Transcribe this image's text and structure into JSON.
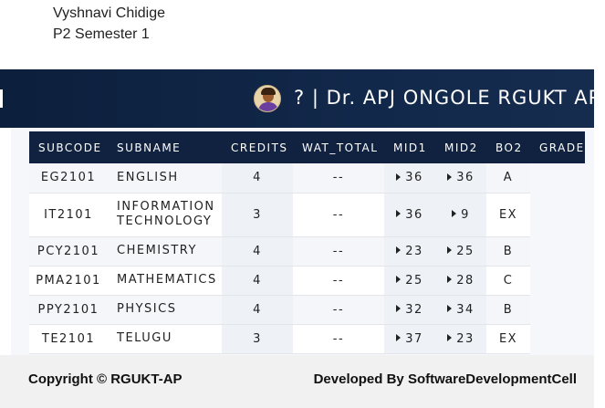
{
  "student": {
    "name": "Vyshnavi Chidige",
    "semester": "P2 Semester 1"
  },
  "header": {
    "title": "? | Dr. APJ ONGOLE RGUKT AP"
  },
  "table": {
    "columns": [
      "SUBCODE",
      "SUBNAME",
      "CREDITS",
      "WAT_TOTAL",
      "MID1",
      "MID2",
      "BO2",
      "GRADE"
    ],
    "rows": [
      {
        "subcode": "EG2101",
        "subname": [
          "ENGLISH"
        ],
        "credits": "4",
        "wat_total": "--",
        "mid1": "36",
        "mid2": "36",
        "bo2": "A"
      },
      {
        "subcode": "IT2101",
        "subname": [
          "INFORMATION",
          "TECHNOLOGY"
        ],
        "credits": "3",
        "wat_total": "--",
        "mid1": "36",
        "mid2": "9",
        "bo2": "EX"
      },
      {
        "subcode": "PCY2101",
        "subname": [
          "CHEMISTRY"
        ],
        "credits": "4",
        "wat_total": "--",
        "mid1": "23",
        "mid2": "25",
        "bo2": "B"
      },
      {
        "subcode": "PMA2101",
        "subname": [
          "MATHEMATICS"
        ],
        "credits": "4",
        "wat_total": "--",
        "mid1": "25",
        "mid2": "28",
        "bo2": "C"
      },
      {
        "subcode": "PPY2101",
        "subname": [
          "PHYSICS"
        ],
        "credits": "4",
        "wat_total": "--",
        "mid1": "32",
        "mid2": "34",
        "bo2": "B"
      },
      {
        "subcode": "TE2101",
        "subname": [
          "TELUGU"
        ],
        "credits": "3",
        "wat_total": "--",
        "mid1": "37",
        "mid2": "23",
        "bo2": "EX"
      }
    ]
  },
  "footer": {
    "copyright": "Copyright © RGUKT-AP",
    "developed": "Developed By SoftwareDevelopmentCell"
  },
  "icons": {
    "avatar": "user-avatar-icon",
    "expand": "caret-right-icon"
  },
  "colors": {
    "header_bg": "#10223f",
    "footer_bg": "#f1f1f1"
  }
}
